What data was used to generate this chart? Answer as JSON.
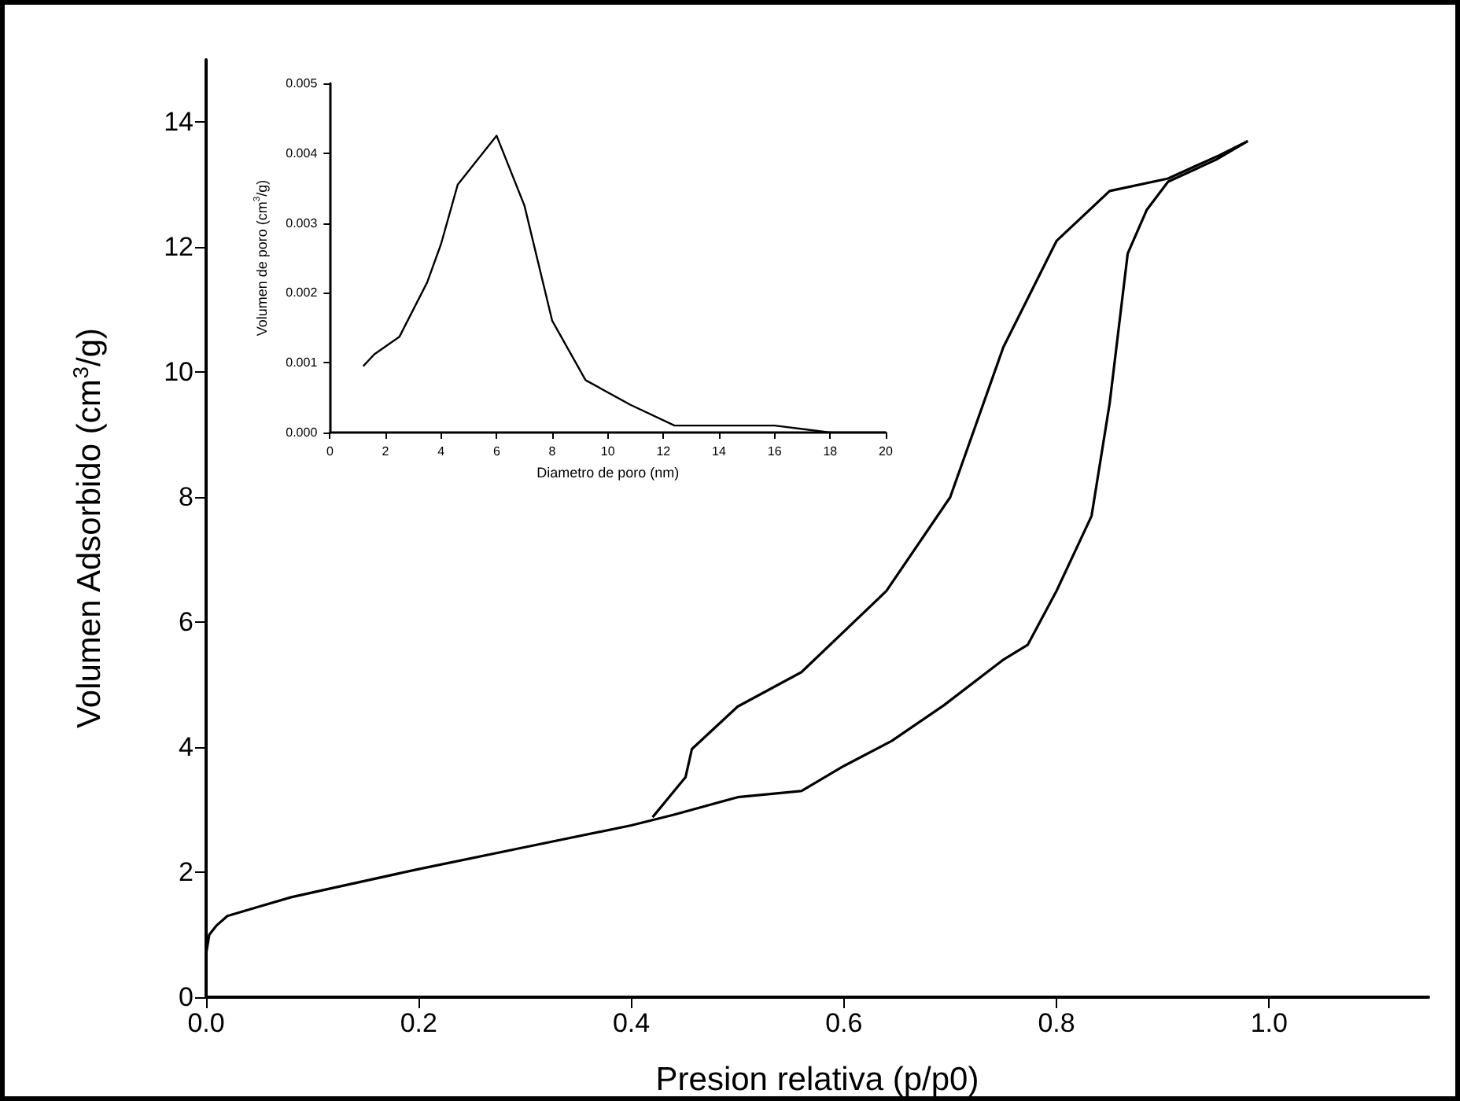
{
  "chart_data": [
    {
      "type": "line",
      "xlabel": "Presion relativa (p/p0)",
      "ylabel": "Volumen Adsorbido (cm$^{3}$/g)",
      "xlim": [
        0,
        1.15
      ],
      "xticks": [
        {
          "value": 0,
          "label": "0.0"
        },
        0.2,
        0.4,
        0.6,
        0.8,
        {
          "value": 1,
          "label": "1.0"
        }
      ],
      "ylim": [
        0,
        15
      ],
      "yticks": [
        0,
        2,
        4,
        6,
        8,
        10,
        12,
        14
      ],
      "grid": false,
      "marker": "none",
      "line_style": "solid",
      "series": [
        {
          "color": "#000000",
          "x": [
            0,
            0.003,
            0.01,
            0.02,
            0.05,
            0.08,
            0.12,
            0.2,
            0.3,
            0.4,
            0.44,
            0.5,
            0.56,
            0.6,
            0.645,
            0.694,
            0.75,
            0.773,
            0.8,
            0.833,
            0.85,
            0.867,
            0.885,
            0.905,
            0.95,
            0.98
          ],
          "values": [
            0.7,
            1.0,
            1.15,
            1.3,
            1.45,
            1.6,
            1.75,
            2.05,
            2.4,
            2.75,
            2.92,
            3.2,
            3.3,
            3.7,
            4.1,
            4.67,
            5.4,
            5.64,
            6.5,
            7.7,
            9.5,
            11.9,
            12.6,
            13.05,
            13.4,
            13.7
          ]
        },
        {
          "color": "#000000",
          "x": [
            0.98,
            0.953,
            0.905,
            0.85,
            0.8,
            0.75,
            0.7,
            0.64,
            0.56,
            0.5,
            0.457,
            0.451,
            0.42
          ],
          "values": [
            13.7,
            13.47,
            13.1,
            12.9,
            12.1,
            10.4,
            8.0,
            6.5,
            5.2,
            4.65,
            3.97,
            3.52,
            2.88
          ]
        }
      ]
    },
    {
      "type": "line",
      "xlabel": "Diametro de poro (nm)",
      "ylabel": "Volumen de poro (cm$^{3}$/g)",
      "xlim": [
        0,
        20
      ],
      "xticks": [
        0,
        2,
        4,
        6,
        8,
        10,
        12,
        14,
        16,
        18,
        20
      ],
      "ylim": [
        0,
        0.005
      ],
      "yticks": [
        {
          "value": 0,
          "label": "0.000"
        },
        {
          "value": 0.001,
          "label": "0.001"
        },
        {
          "value": 0.002,
          "label": "0.002"
        },
        {
          "value": 0.003,
          "label": "0.003"
        },
        {
          "value": 0.004,
          "label": "0.004"
        },
        {
          "value": 0.005,
          "label": "0.005"
        }
      ],
      "grid": false,
      "marker": "none",
      "line_style": "solid",
      "series": [
        {
          "color": "#000000",
          "x": [
            1.2,
            1.6,
            2.5,
            3.5,
            4,
            4.6,
            6,
            7,
            8,
            9.2,
            10.8,
            12.4,
            14,
            16,
            18,
            20
          ],
          "values": [
            0.00095,
            0.00112,
            0.00137,
            0.00215,
            0.0027,
            0.00355,
            0.00425,
            0.00325,
            0.0016,
            0.00075,
            0.0004,
            0.0001,
            0.0001,
            0.0001,
            0.0,
            0.0
          ]
        }
      ]
    }
  ]
}
